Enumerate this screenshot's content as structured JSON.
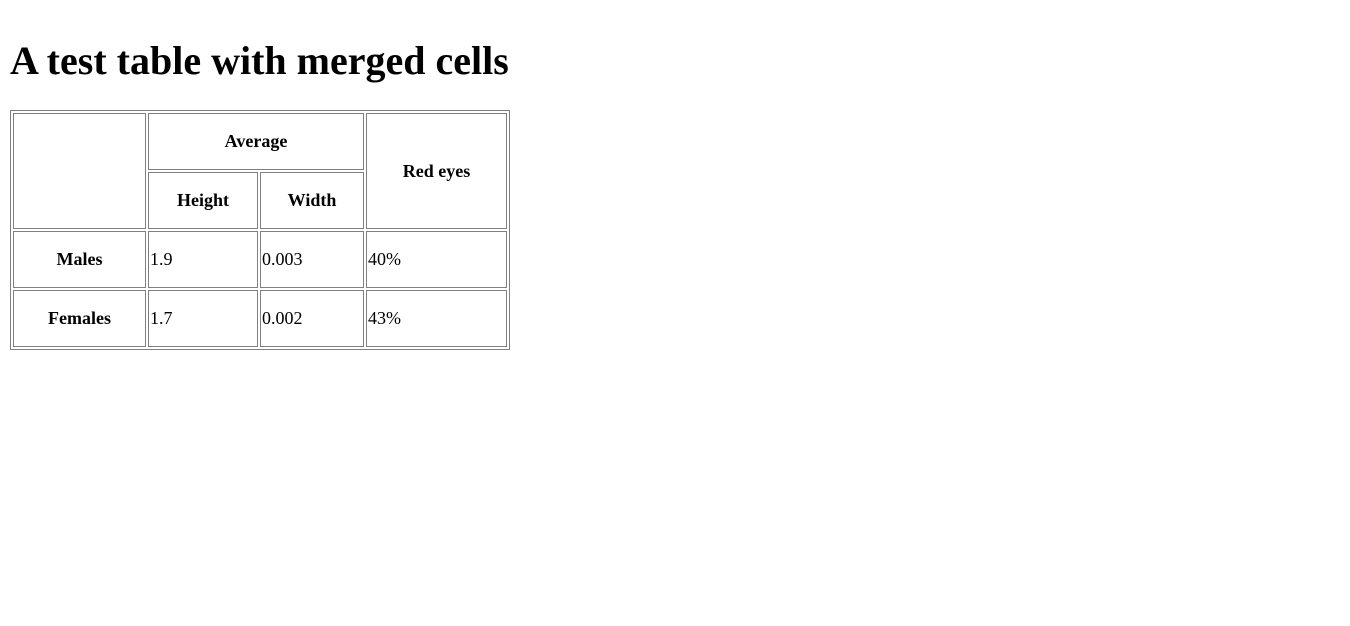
{
  "page": {
    "title": "A test table with merged cells"
  },
  "table": {
    "header": {
      "group_label": "Average",
      "sub_columns": [
        "Height",
        "Width"
      ],
      "red_eyes_label": "Red eyes"
    },
    "rows": [
      {
        "label": "Males",
        "height": "1.9",
        "width": "0.003",
        "red_eyes": "40%"
      },
      {
        "label": "Females",
        "height": "1.7",
        "width": "0.002",
        "red_eyes": "43%"
      }
    ]
  }
}
